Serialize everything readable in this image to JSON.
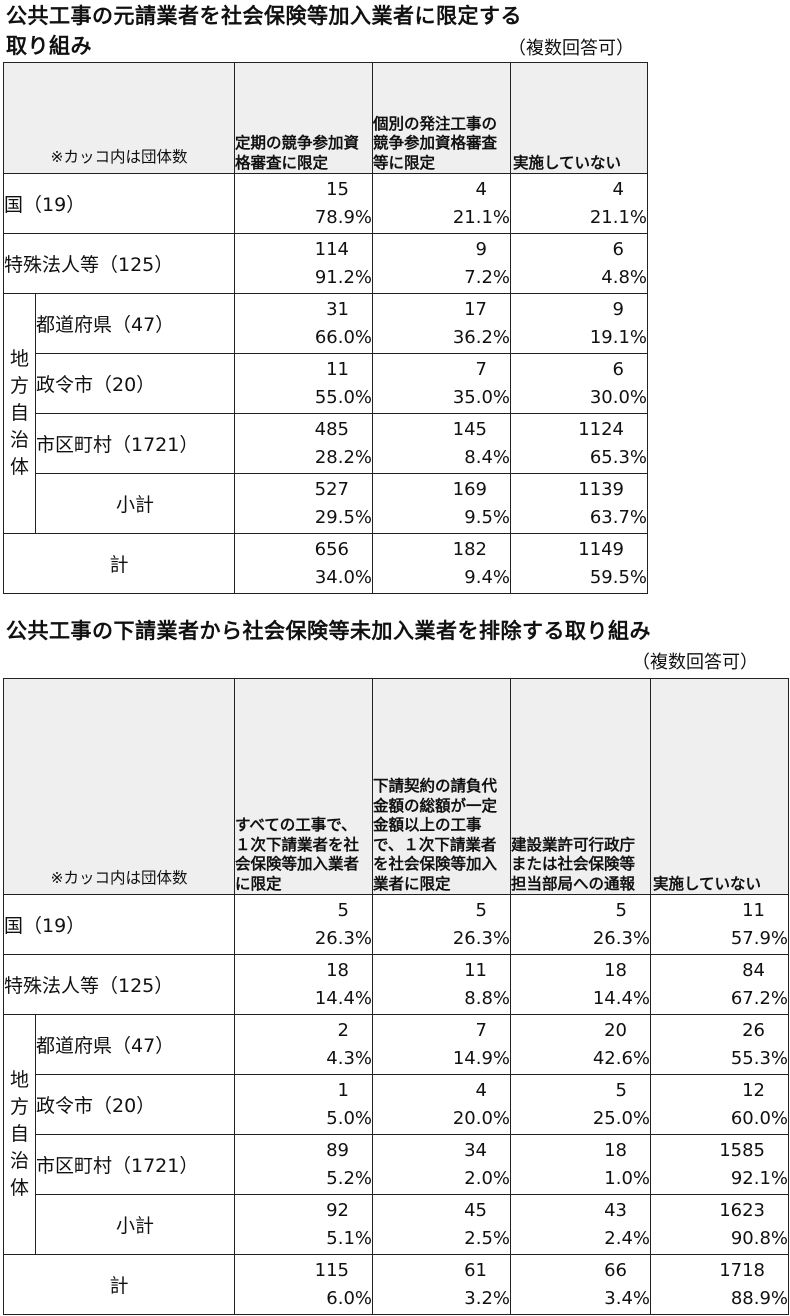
{
  "table1": {
    "title_line1": "公共工事の元請業者を社会保険等加入業者に限定する",
    "title_line2": "取り組み",
    "note": "（複数回答可）",
    "corner": "※カッコ内は団体数",
    "columns": [
      "定期の競争参加資格審査に限定",
      "個別の発注工事の競争参加資格審査等に限定",
      "実施していない"
    ],
    "rows": {
      "kuni": {
        "label": "国（19）",
        "cells": [
          {
            "n": "15",
            "p": "78.9%"
          },
          {
            "n": "4",
            "p": "21.1%"
          },
          {
            "n": "4",
            "p": "21.1%"
          }
        ]
      },
      "tokushu": {
        "label": "特殊法人等（125）",
        "cells": [
          {
            "n": "114",
            "p": "91.2%"
          },
          {
            "n": "9",
            "p": "7.2%"
          },
          {
            "n": "6",
            "p": "4.8%"
          }
        ]
      },
      "todofuken": {
        "label": "都道府県（47）",
        "cells": [
          {
            "n": "31",
            "p": "66.0%"
          },
          {
            "n": "17",
            "p": "36.2%"
          },
          {
            "n": "9",
            "p": "19.1%"
          }
        ]
      },
      "seirei": {
        "label": "政令市（20）",
        "cells": [
          {
            "n": "11",
            "p": "55.0%"
          },
          {
            "n": "7",
            "p": "35.0%"
          },
          {
            "n": "6",
            "p": "30.0%"
          }
        ]
      },
      "shikuchoson": {
        "label": "市区町村（1721）",
        "cells": [
          {
            "n": "485",
            "p": "28.2%"
          },
          {
            "n": "145",
            "p": "8.4%"
          },
          {
            "n": "1124",
            "p": "65.3%"
          }
        ]
      },
      "shokei": {
        "label": "小計",
        "cells": [
          {
            "n": "527",
            "p": "29.5%"
          },
          {
            "n": "169",
            "p": "9.5%"
          },
          {
            "n": "1139",
            "p": "63.7%"
          }
        ]
      },
      "kei": {
        "label": "計",
        "cells": [
          {
            "n": "656",
            "p": "34.0%"
          },
          {
            "n": "182",
            "p": "9.4%"
          },
          {
            "n": "1149",
            "p": "59.5%"
          }
        ]
      }
    }
  },
  "table2": {
    "title": "公共工事の下請業者から社会保険等未加入業者を排除する取り組み",
    "note": "（複数回答可）",
    "corner": "※カッコ内は団体数",
    "columns": [
      "すべての工事で、１次下請業者を社会保険等加入業者に限定",
      "下請契約の請負代金額の総額が一定金額以上の工事で、１次下請業者を社会保険等加入業者に限定",
      "建設業許可行政庁または社会保険等担当部局への通報",
      "実施していない"
    ],
    "rows": {
      "kuni": {
        "label": "国（19）",
        "cells": [
          {
            "n": "5",
            "p": "26.3%"
          },
          {
            "n": "5",
            "p": "26.3%"
          },
          {
            "n": "5",
            "p": "26.3%"
          },
          {
            "n": "11",
            "p": "57.9%"
          }
        ]
      },
      "tokushu": {
        "label": "特殊法人等（125）",
        "cells": [
          {
            "n": "18",
            "p": "14.4%"
          },
          {
            "n": "11",
            "p": "8.8%"
          },
          {
            "n": "18",
            "p": "14.4%"
          },
          {
            "n": "84",
            "p": "67.2%"
          }
        ]
      },
      "todofuken": {
        "label": "都道府県（47）",
        "cells": [
          {
            "n": "2",
            "p": "4.3%"
          },
          {
            "n": "7",
            "p": "14.9%"
          },
          {
            "n": "20",
            "p": "42.6%"
          },
          {
            "n": "26",
            "p": "55.3%"
          }
        ]
      },
      "seirei": {
        "label": "政令市（20）",
        "cells": [
          {
            "n": "1",
            "p": "5.0%"
          },
          {
            "n": "4",
            "p": "20.0%"
          },
          {
            "n": "5",
            "p": "25.0%"
          },
          {
            "n": "12",
            "p": "60.0%"
          }
        ]
      },
      "shikuchoson": {
        "label": "市区町村（1721）",
        "cells": [
          {
            "n": "89",
            "p": "5.2%"
          },
          {
            "n": "34",
            "p": "2.0%"
          },
          {
            "n": "18",
            "p": "1.0%"
          },
          {
            "n": "1585",
            "p": "92.1%"
          }
        ]
      },
      "shokei": {
        "label": "小計",
        "cells": [
          {
            "n": "92",
            "p": "5.1%"
          },
          {
            "n": "45",
            "p": "2.5%"
          },
          {
            "n": "43",
            "p": "2.4%"
          },
          {
            "n": "1623",
            "p": "90.8%"
          }
        ]
      },
      "kei": {
        "label": "計",
        "cells": [
          {
            "n": "115",
            "p": "6.0%"
          },
          {
            "n": "61",
            "p": "3.2%"
          },
          {
            "n": "66",
            "p": "3.4%"
          },
          {
            "n": "1718",
            "p": "88.9%"
          }
        ]
      }
    }
  },
  "local_gov_label": [
    "地",
    "方",
    "自",
    "治",
    "体"
  ]
}
